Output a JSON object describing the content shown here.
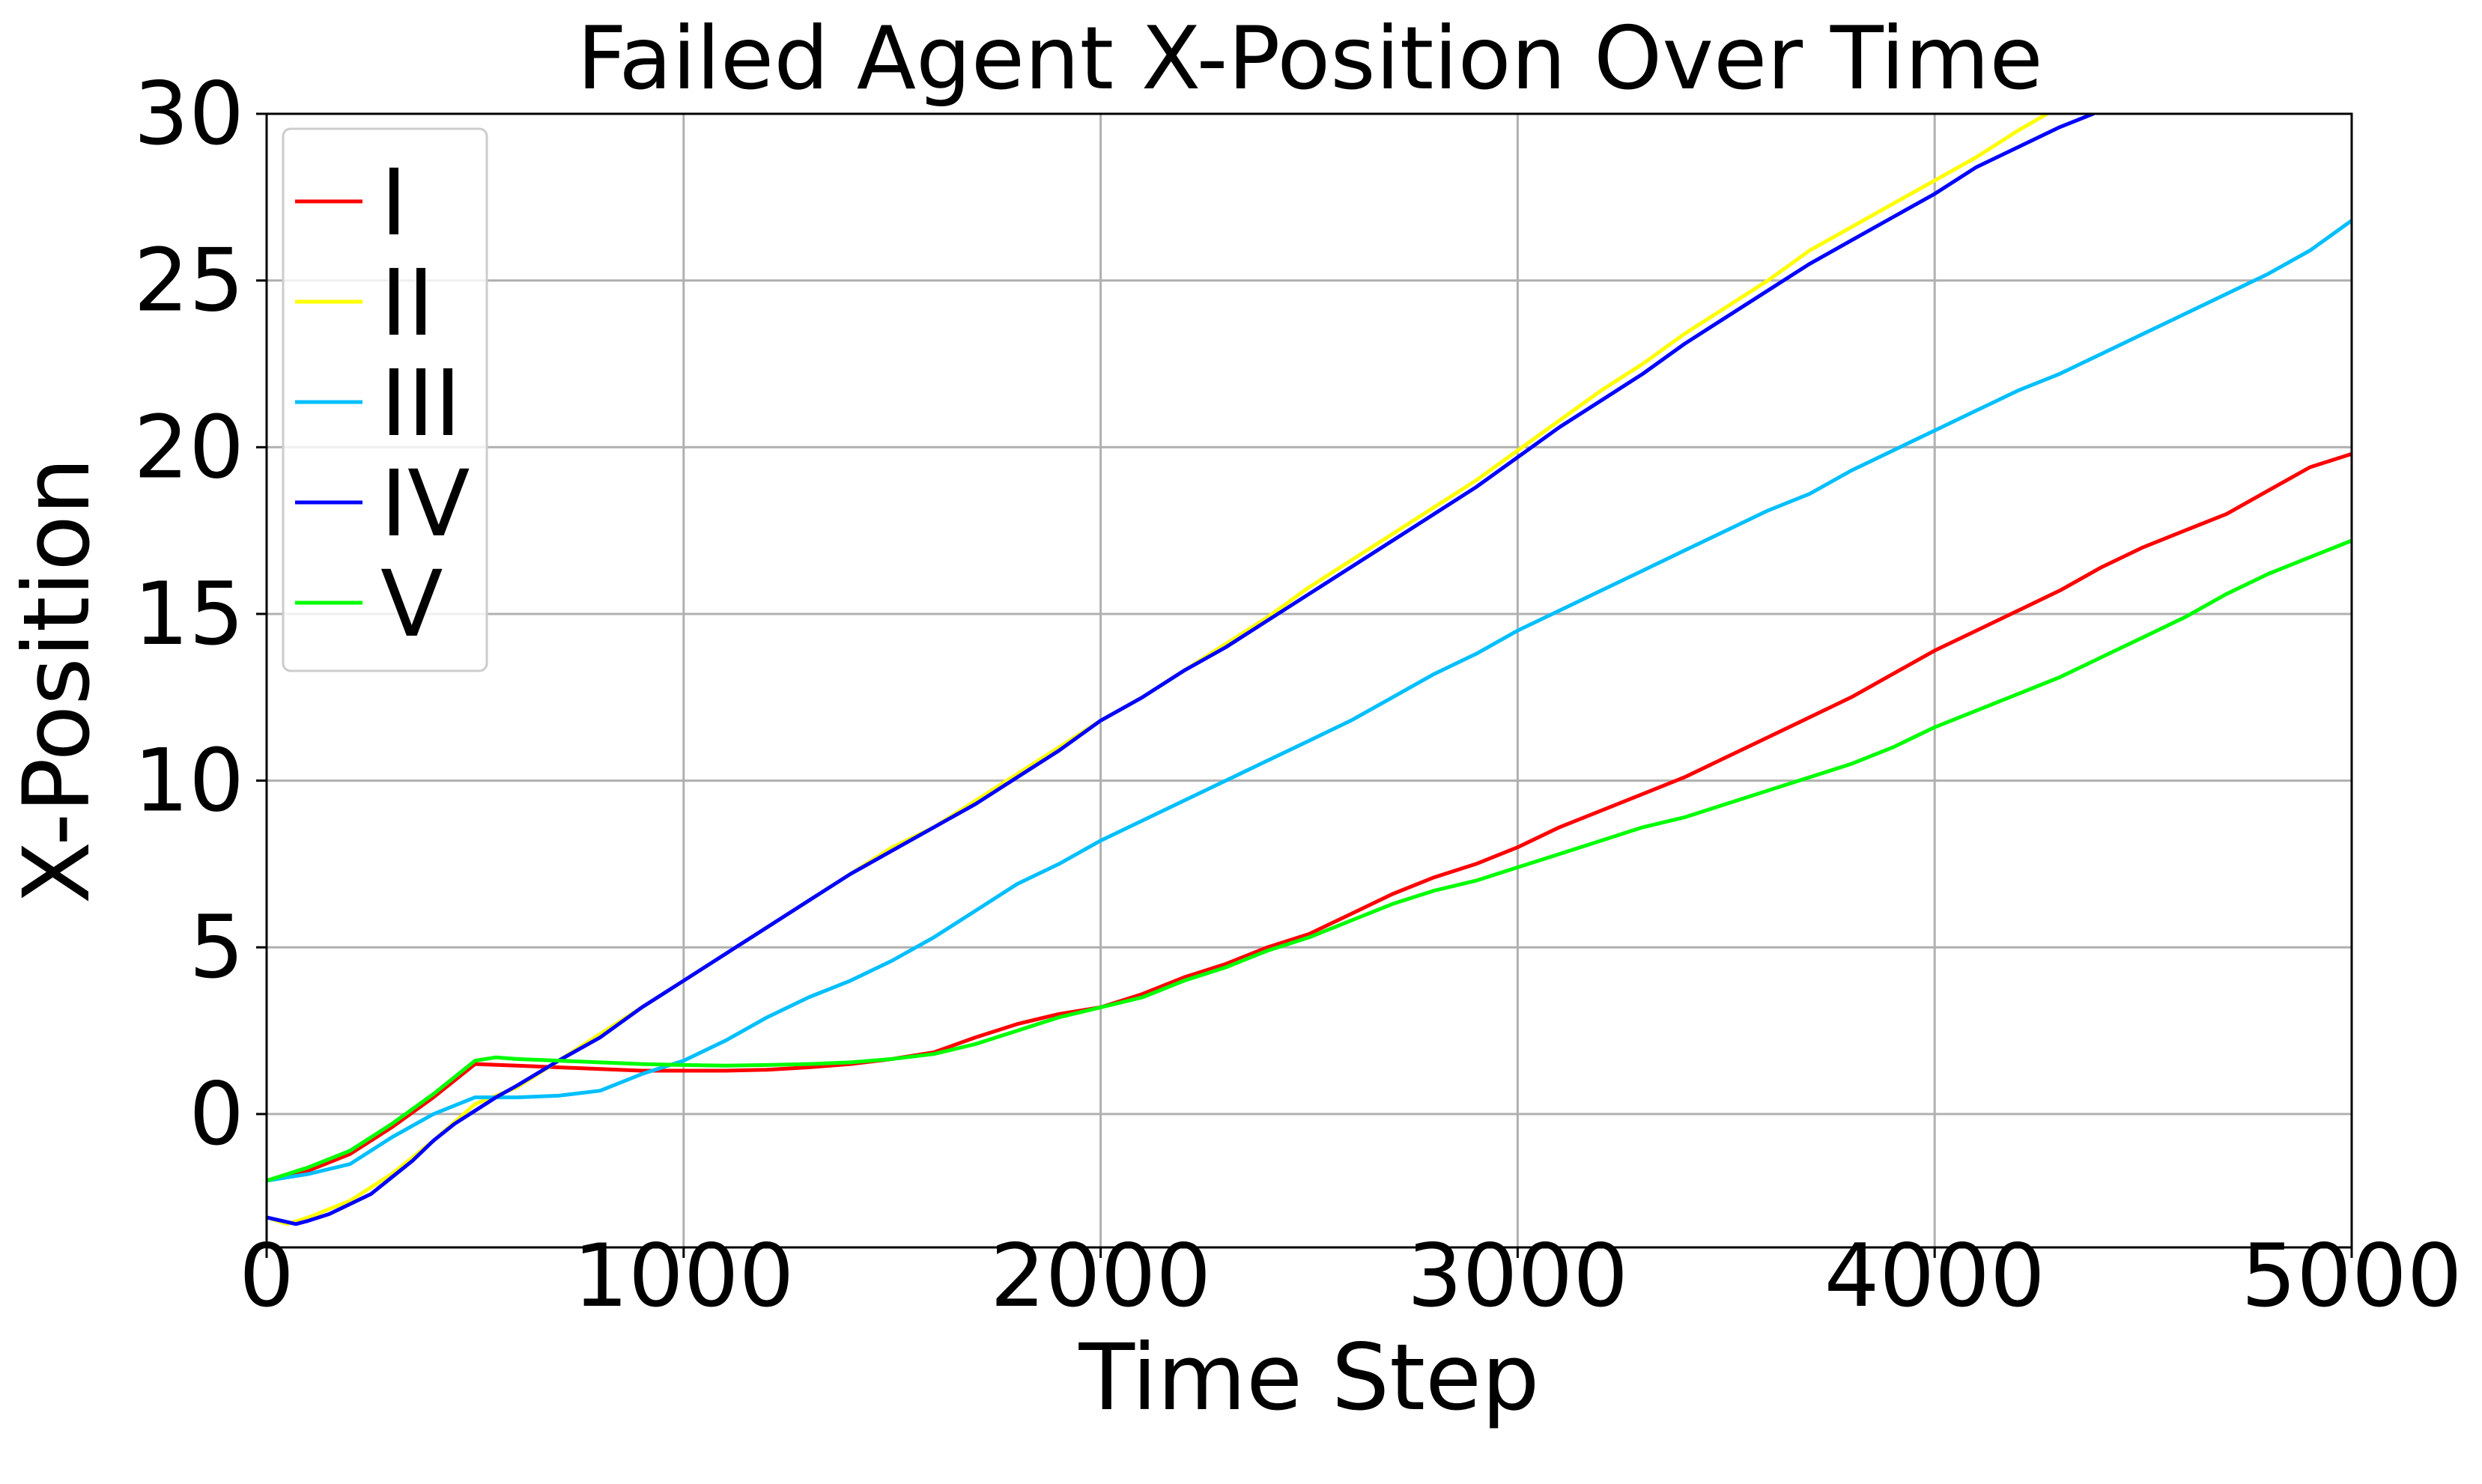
{
  "chart_data": {
    "type": "line",
    "title": "Failed Agent X-Position Over Time",
    "xlabel": "Time Step",
    "ylabel": "X-Position",
    "xlim": [
      0,
      5000
    ],
    "ylim": [
      -4,
      30
    ],
    "xticks": [
      0,
      1000,
      2000,
      3000,
      4000,
      5000
    ],
    "yticks": [
      0,
      5,
      10,
      15,
      20,
      25,
      30
    ],
    "grid": true,
    "legend_position": "top-left",
    "series": [
      {
        "name": "I",
        "color": "#ff0000",
        "points": [
          [
            0,
            -2
          ],
          [
            100,
            -1.7
          ],
          [
            200,
            -1.2
          ],
          [
            300,
            -0.4
          ],
          [
            400,
            0.5
          ],
          [
            500,
            1.5
          ],
          [
            600,
            1.45
          ],
          [
            700,
            1.4
          ],
          [
            800,
            1.35
          ],
          [
            900,
            1.3
          ],
          [
            1000,
            1.3
          ],
          [
            1100,
            1.3
          ],
          [
            1200,
            1.33
          ],
          [
            1300,
            1.4
          ],
          [
            1400,
            1.5
          ],
          [
            1500,
            1.65
          ],
          [
            1600,
            1.85
          ],
          [
            1700,
            2.3
          ],
          [
            1800,
            2.7
          ],
          [
            1900,
            3.0
          ],
          [
            2000,
            3.2
          ],
          [
            2100,
            3.6
          ],
          [
            2200,
            4.1
          ],
          [
            2300,
            4.5
          ],
          [
            2400,
            5.0
          ],
          [
            2500,
            5.4
          ],
          [
            2600,
            6.0
          ],
          [
            2700,
            6.6
          ],
          [
            2800,
            7.1
          ],
          [
            2900,
            7.5
          ],
          [
            3000,
            8.0
          ],
          [
            3100,
            8.6
          ],
          [
            3200,
            9.1
          ],
          [
            3300,
            9.6
          ],
          [
            3400,
            10.1
          ],
          [
            3500,
            10.7
          ],
          [
            3600,
            11.3
          ],
          [
            3700,
            11.9
          ],
          [
            3800,
            12.5
          ],
          [
            3900,
            13.2
          ],
          [
            4000,
            13.9
          ],
          [
            4100,
            14.5
          ],
          [
            4200,
            15.1
          ],
          [
            4300,
            15.7
          ],
          [
            4400,
            16.4
          ],
          [
            4500,
            17.0
          ],
          [
            4600,
            17.5
          ],
          [
            4700,
            18.0
          ],
          [
            4800,
            18.7
          ],
          [
            4900,
            19.4
          ],
          [
            5000,
            19.8
          ]
        ]
      },
      {
        "name": "II",
        "color": "#ffff00",
        "points": [
          [
            0,
            -3.1
          ],
          [
            50,
            -3.3
          ],
          [
            100,
            -3.1
          ],
          [
            200,
            -2.6
          ],
          [
            300,
            -1.8
          ],
          [
            400,
            -0.8
          ],
          [
            500,
            0.3
          ],
          [
            600,
            0.8
          ],
          [
            700,
            1.6
          ],
          [
            800,
            2.4
          ],
          [
            900,
            3.2
          ],
          [
            1000,
            4.0
          ],
          [
            1100,
            4.8
          ],
          [
            1200,
            5.6
          ],
          [
            1300,
            6.4
          ],
          [
            1400,
            7.2
          ],
          [
            1500,
            8.0
          ],
          [
            1600,
            8.6
          ],
          [
            1700,
            9.4
          ],
          [
            1800,
            10.2
          ],
          [
            1900,
            11.0
          ],
          [
            2000,
            11.8
          ],
          [
            2100,
            12.5
          ],
          [
            2200,
            13.3
          ],
          [
            2300,
            14.1
          ],
          [
            2400,
            14.9
          ],
          [
            2500,
            15.8
          ],
          [
            2600,
            16.6
          ],
          [
            2700,
            17.4
          ],
          [
            2800,
            18.2
          ],
          [
            2900,
            19.0
          ],
          [
            3000,
            19.9
          ],
          [
            3100,
            20.8
          ],
          [
            3200,
            21.7
          ],
          [
            3300,
            22.5
          ],
          [
            3400,
            23.4
          ],
          [
            3500,
            24.2
          ],
          [
            3600,
            25.0
          ],
          [
            3700,
            25.9
          ],
          [
            3800,
            26.6
          ],
          [
            3900,
            27.3
          ],
          [
            4000,
            28.0
          ],
          [
            4100,
            28.7
          ],
          [
            4200,
            29.5
          ],
          [
            4270,
            30.0
          ]
        ]
      },
      {
        "name": "III",
        "color": "#00bfff",
        "points": [
          [
            0,
            -2
          ],
          [
            100,
            -1.8
          ],
          [
            200,
            -1.5
          ],
          [
            300,
            -0.7
          ],
          [
            400,
            0
          ],
          [
            500,
            0.5
          ],
          [
            600,
            0.5
          ],
          [
            700,
            0.55
          ],
          [
            800,
            0.7
          ],
          [
            900,
            1.2
          ],
          [
            1000,
            1.6
          ],
          [
            1100,
            2.2
          ],
          [
            1200,
            2.9
          ],
          [
            1300,
            3.5
          ],
          [
            1400,
            4.0
          ],
          [
            1500,
            4.6
          ],
          [
            1600,
            5.3
          ],
          [
            1700,
            6.1
          ],
          [
            1800,
            6.9
          ],
          [
            1900,
            7.5
          ],
          [
            2000,
            8.2
          ],
          [
            2100,
            8.8
          ],
          [
            2200,
            9.4
          ],
          [
            2300,
            10.0
          ],
          [
            2400,
            10.6
          ],
          [
            2500,
            11.2
          ],
          [
            2600,
            11.8
          ],
          [
            2700,
            12.5
          ],
          [
            2800,
            13.2
          ],
          [
            2900,
            13.8
          ],
          [
            3000,
            14.5
          ],
          [
            3100,
            15.1
          ],
          [
            3200,
            15.7
          ],
          [
            3300,
            16.3
          ],
          [
            3400,
            16.9
          ],
          [
            3500,
            17.5
          ],
          [
            3600,
            18.1
          ],
          [
            3700,
            18.6
          ],
          [
            3800,
            19.3
          ],
          [
            3900,
            19.9
          ],
          [
            4000,
            20.5
          ],
          [
            4100,
            21.1
          ],
          [
            4200,
            21.7
          ],
          [
            4300,
            22.2
          ],
          [
            4400,
            22.8
          ],
          [
            4500,
            23.4
          ],
          [
            4600,
            24.0
          ],
          [
            4700,
            24.6
          ],
          [
            4800,
            25.2
          ],
          [
            4900,
            25.9
          ],
          [
            5000,
            26.8
          ]
        ]
      },
      {
        "name": "IV",
        "color": "#0000ff",
        "points": [
          [
            0,
            -3.1
          ],
          [
            70,
            -3.3
          ],
          [
            100,
            -3.2
          ],
          [
            150,
            -3.0
          ],
          [
            200,
            -2.7
          ],
          [
            250,
            -2.4
          ],
          [
            300,
            -1.9
          ],
          [
            350,
            -1.4
          ],
          [
            400,
            -0.8
          ],
          [
            450,
            -0.3
          ],
          [
            500,
            0.1
          ],
          [
            550,
            0.5
          ],
          [
            600,
            0.85
          ],
          [
            700,
            1.6
          ],
          [
            800,
            2.3
          ],
          [
            900,
            3.2
          ],
          [
            1000,
            4.0
          ],
          [
            1100,
            4.8
          ],
          [
            1200,
            5.6
          ],
          [
            1300,
            6.4
          ],
          [
            1400,
            7.2
          ],
          [
            1500,
            7.9
          ],
          [
            1600,
            8.6
          ],
          [
            1700,
            9.3
          ],
          [
            1800,
            10.1
          ],
          [
            1900,
            10.9
          ],
          [
            2000,
            11.8
          ],
          [
            2100,
            12.5
          ],
          [
            2200,
            13.3
          ],
          [
            2300,
            14.0
          ],
          [
            2400,
            14.8
          ],
          [
            2500,
            15.6
          ],
          [
            2600,
            16.4
          ],
          [
            2700,
            17.2
          ],
          [
            2800,
            18.0
          ],
          [
            2900,
            18.8
          ],
          [
            3000,
            19.7
          ],
          [
            3100,
            20.6
          ],
          [
            3200,
            21.4
          ],
          [
            3300,
            22.2
          ],
          [
            3400,
            23.1
          ],
          [
            3500,
            23.9
          ],
          [
            3600,
            24.7
          ],
          [
            3700,
            25.5
          ],
          [
            3800,
            26.2
          ],
          [
            3900,
            26.9
          ],
          [
            4000,
            27.6
          ],
          [
            4100,
            28.4
          ],
          [
            4200,
            29.0
          ],
          [
            4300,
            29.6
          ],
          [
            4380,
            30.0
          ]
        ]
      },
      {
        "name": "V",
        "color": "#00ff00",
        "points": [
          [
            0,
            -2
          ],
          [
            100,
            -1.6
          ],
          [
            200,
            -1.1
          ],
          [
            300,
            -0.3
          ],
          [
            400,
            0.6
          ],
          [
            500,
            1.6
          ],
          [
            550,
            1.7
          ],
          [
            600,
            1.65
          ],
          [
            700,
            1.6
          ],
          [
            800,
            1.55
          ],
          [
            900,
            1.5
          ],
          [
            1000,
            1.47
          ],
          [
            1100,
            1.45
          ],
          [
            1200,
            1.47
          ],
          [
            1300,
            1.5
          ],
          [
            1400,
            1.55
          ],
          [
            1500,
            1.65
          ],
          [
            1600,
            1.8
          ],
          [
            1700,
            2.1
          ],
          [
            1800,
            2.5
          ],
          [
            1900,
            2.9
          ],
          [
            2000,
            3.2
          ],
          [
            2100,
            3.5
          ],
          [
            2200,
            4.0
          ],
          [
            2300,
            4.4
          ],
          [
            2400,
            4.9
          ],
          [
            2500,
            5.3
          ],
          [
            2600,
            5.8
          ],
          [
            2700,
            6.3
          ],
          [
            2800,
            6.7
          ],
          [
            2900,
            7.0
          ],
          [
            3000,
            7.4
          ],
          [
            3100,
            7.8
          ],
          [
            3200,
            8.2
          ],
          [
            3300,
            8.6
          ],
          [
            3400,
            8.9
          ],
          [
            3500,
            9.3
          ],
          [
            3600,
            9.7
          ],
          [
            3700,
            10.1
          ],
          [
            3800,
            10.5
          ],
          [
            3900,
            11.0
          ],
          [
            4000,
            11.6
          ],
          [
            4100,
            12.1
          ],
          [
            4200,
            12.6
          ],
          [
            4300,
            13.1
          ],
          [
            4400,
            13.7
          ],
          [
            4500,
            14.3
          ],
          [
            4600,
            14.9
          ],
          [
            4700,
            15.6
          ],
          [
            4800,
            16.2
          ],
          [
            4900,
            16.7
          ],
          [
            5000,
            17.2
          ]
        ]
      }
    ]
  }
}
